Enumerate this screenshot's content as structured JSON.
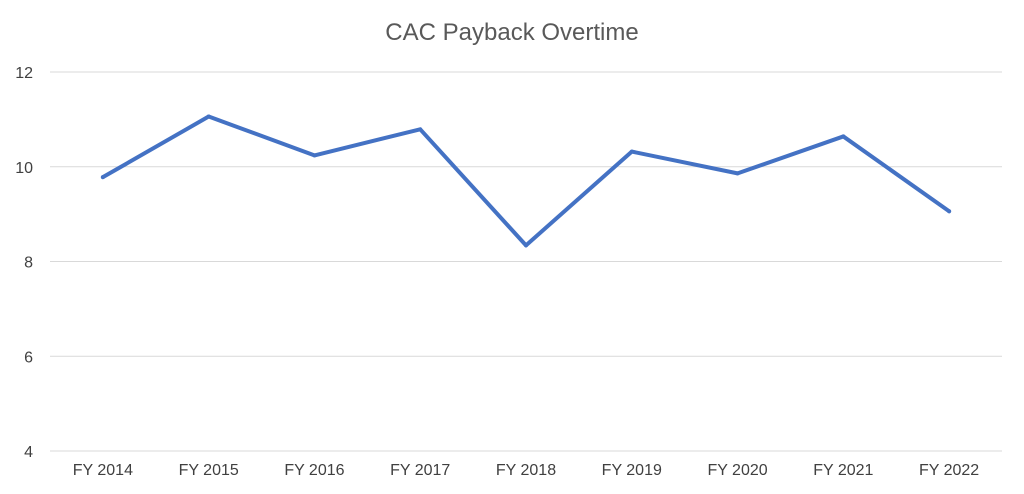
{
  "chart_data": {
    "type": "line",
    "title": "CAC Payback Overtime",
    "xlabel": "",
    "ylabel": "",
    "categories": [
      "FY 2014",
      "FY 2015",
      "FY 2016",
      "FY 2017",
      "FY 2018",
      "FY 2019",
      "FY 2020",
      "FY 2021",
      "FY 2022"
    ],
    "series": [
      {
        "color": "#4472C4",
        "values": [
          9.78,
          11.06,
          10.24,
          10.79,
          8.34,
          10.32,
          9.86,
          10.64,
          9.06
        ]
      }
    ],
    "ylim": [
      4,
      12
    ],
    "yticks": [
      "4",
      "6",
      "8",
      "10",
      "12"
    ],
    "grid": true,
    "legend": "none"
  }
}
